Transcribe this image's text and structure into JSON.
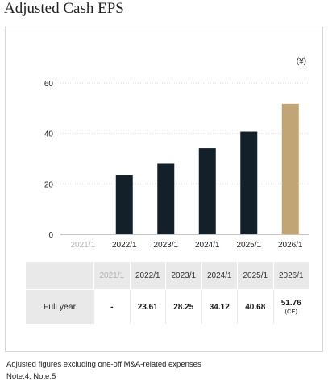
{
  "title": "Adjusted Cash EPS",
  "chart_data": {
    "type": "bar",
    "unit": "(¥)",
    "categories": [
      "2021/1",
      "2022/1",
      "2023/1",
      "2024/1",
      "2025/1",
      "2026/1"
    ],
    "values": [
      null,
      23.61,
      28.25,
      34.12,
      40.68,
      51.76
    ],
    "ylim": [
      0,
      60
    ],
    "yticks": [
      "0",
      "20",
      "40",
      "60"
    ],
    "grid": true,
    "colors": {
      "actual": "#13202a",
      "estimate": "#c2a574",
      "dim_label": "#b3b3b3",
      "label": "#222222",
      "grid": "#d9d9d9"
    }
  },
  "table": {
    "header": [
      "2021/1",
      "2022/1",
      "2023/1",
      "2024/1",
      "2025/1",
      "2026/1"
    ],
    "row_label": "Full year",
    "values": [
      "-",
      "23.61",
      "28.25",
      "34.12",
      "40.68",
      "51.76"
    ],
    "last_note": "(CE)"
  },
  "footnotes": {
    "line1": "Adjusted figures excluding one-off M&A-related expenses",
    "line2": "Note:4, Note:5"
  }
}
